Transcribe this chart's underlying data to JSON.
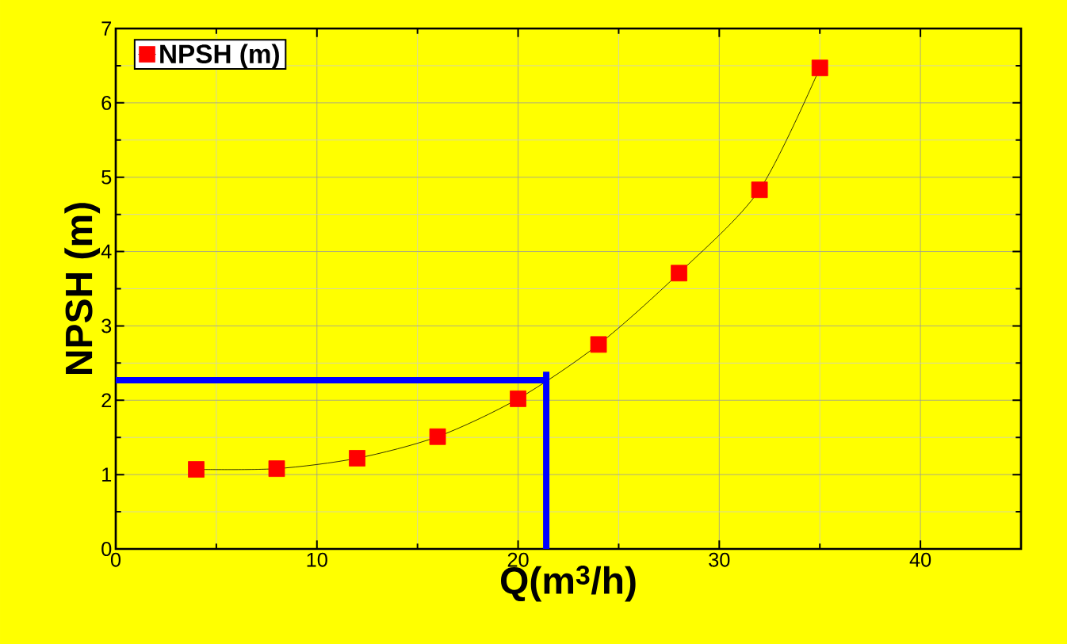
{
  "chart_data": {
    "type": "line",
    "xlabel": "Q(m$^{3}$/h)",
    "ylabel": "NPSH (m)",
    "x": [
      4,
      8,
      12,
      16,
      20,
      24,
      28,
      32,
      35
    ],
    "series": [
      {
        "name": "NPSH (m)",
        "color": "#ff0000",
        "values": [
          1.07,
          1.08,
          1.22,
          1.51,
          2.02,
          2.75,
          3.71,
          4.83,
          6.47
        ]
      }
    ],
    "xlim": [
      0,
      45
    ],
    "xticks": [
      0,
      10,
      20,
      30,
      40
    ],
    "ylim": [
      0,
      7
    ],
    "yticks": [
      0,
      1,
      2,
      3,
      4,
      5,
      6,
      7
    ],
    "grid": true,
    "legend": "top left",
    "marker": "square",
    "line_style": "solid",
    "ref_lines": [
      {
        "axis": "y",
        "value": 2.27,
        "color": "#0000ff"
      },
      {
        "axis": "x",
        "value": 21.4,
        "color": "#0000ff"
      }
    ]
  }
}
